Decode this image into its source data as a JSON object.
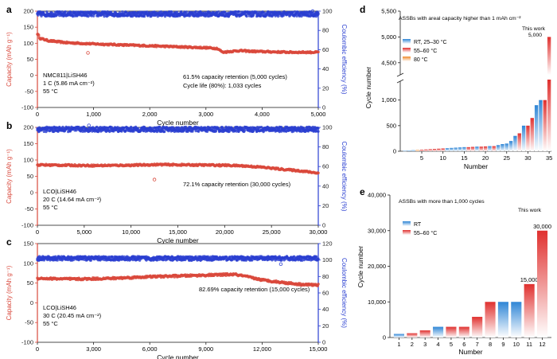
{
  "figure": {
    "colors": {
      "capacity": "#d9483b",
      "ce": "#2a3fd1",
      "axis": "#222222",
      "rt": "#2f86d6",
      "hot": "#e0312f",
      "warm": "#f08a2c"
    },
    "panels": [
      {
        "id": "a",
        "label": "a",
        "text": [
          "NMC811|LiSH46",
          "1 C (5.86 mA cm⁻²)",
          "55 °C"
        ],
        "annotation": [
          "61.5% capacity retention (5,000 cycles)",
          "Cycle life (80%): 1,033 cycles"
        ]
      },
      {
        "id": "b",
        "label": "b",
        "text": [
          "LCO|LiSH46",
          "20 C (14.64 mA cm⁻²)",
          "55 °C"
        ],
        "annotation": [
          "72.1% capacity retention (30,000 cycles)"
        ]
      },
      {
        "id": "c",
        "label": "c",
        "text": [
          "LCO|LiSH46",
          "30 C (20.45 mA cm⁻²)",
          "55 °C"
        ],
        "annotation": [
          "82.69% capacity retention (15,000 cycles)"
        ]
      },
      {
        "id": "d",
        "label": "d",
        "header": "ASSBs with areal capacity higher than 1 mAh cm⁻²",
        "this_work": "This work",
        "this_work_value": "5,000",
        "legend": [
          "RT, 25–30 °C",
          "55–60 °C",
          "80 °C"
        ]
      },
      {
        "id": "e",
        "label": "e",
        "header": "ASSBs with more than 1,000 cycles",
        "this_work": "This work",
        "legend": [
          "RT",
          "55–60 °C"
        ],
        "value_labels": [
          "15,000",
          "30,000"
        ]
      }
    ]
  },
  "chart_data": [
    {
      "type": "scatter",
      "panel": "a",
      "xlabel": "Cycle number",
      "ylabel": "Capacity (mAh g⁻¹)",
      "y2label": "Coulombic efficiency (%)",
      "xlim": [
        0,
        5000
      ],
      "ylim": [
        -100,
        200
      ],
      "y2lim": [
        0,
        100
      ],
      "xticks": [
        0,
        1000,
        2000,
        3000,
        4000,
        5000
      ],
      "xtick_labels": [
        "0",
        "1,000",
        "2,000",
        "3,000",
        "4,000",
        "5,000"
      ],
      "yticks": [
        -100,
        -50,
        0,
        50,
        100,
        150,
        200
      ],
      "y2ticks": [
        0,
        20,
        40,
        60,
        80,
        100
      ],
      "series": [
        {
          "axis": "left",
          "points": [
            [
              0,
              130
            ],
            [
              50,
              115
            ],
            [
              200,
              108
            ],
            [
              500,
              102
            ],
            [
              1000,
              98
            ],
            [
              1500,
              95
            ],
            [
              2000,
              92
            ],
            [
              2500,
              89
            ],
            [
              3000,
              86
            ],
            [
              3200,
              84
            ],
            [
              3300,
              72
            ],
            [
              3400,
              74
            ],
            [
              3600,
              77
            ],
            [
              3800,
              75
            ],
            [
              4000,
              74
            ],
            [
              4500,
              72
            ],
            [
              5000,
              72
            ]
          ]
        },
        {
          "axis": "right",
          "points": [
            [
              0,
              97
            ],
            [
              5000,
              97
            ]
          ]
        }
      ],
      "outliers": [
        [
          900,
          70
        ],
        [
          950,
          97
        ],
        [
          3400,
          95
        ],
        [
          4900,
          100
        ]
      ]
    },
    {
      "type": "scatter",
      "panel": "b",
      "xlabel": "Cycle number",
      "ylabel": "Capacity (mAh g⁻¹)",
      "y2label": "Coulombic efficiency (%)",
      "xlim": [
        0,
        30000
      ],
      "ylim": [
        -100,
        200
      ],
      "y2lim": [
        0,
        100
      ],
      "xticks": [
        0,
        5000,
        10000,
        15000,
        20000,
        25000,
        30000
      ],
      "xtick_labels": [
        "0",
        "5,000",
        "10,000",
        "15,000",
        "20,000",
        "25,000",
        "30,000"
      ],
      "yticks": [
        -150,
        -100,
        -50,
        0,
        50,
        100,
        150,
        200
      ],
      "y2ticks": [
        0,
        20,
        40,
        60,
        80,
        100
      ],
      "series": [
        {
          "axis": "left",
          "points": [
            [
              0,
              85
            ],
            [
              3000,
              84
            ],
            [
              6000,
              83
            ],
            [
              10000,
              84
            ],
            [
              13000,
              86
            ],
            [
              16000,
              85
            ],
            [
              20000,
              84
            ],
            [
              22000,
              82
            ],
            [
              24000,
              78
            ],
            [
              26000,
              72
            ],
            [
              28000,
              67
            ],
            [
              30000,
              60
            ]
          ]
        },
        {
          "axis": "right",
          "points": [
            [
              0,
              98
            ],
            [
              30000,
              98
            ]
          ]
        }
      ],
      "outliers": [
        [
          12500,
          40
        ],
        [
          19500,
          82
        ],
        [
          5500,
          102
        ]
      ]
    },
    {
      "type": "scatter",
      "panel": "c",
      "xlabel": "Cycle number",
      "ylabel": "Capacity (mAh g⁻¹)",
      "y2label": "Coulombic efficiency (%)",
      "xlim": [
        0,
        15000
      ],
      "ylim": [
        -100,
        150
      ],
      "y2lim": [
        0,
        120
      ],
      "xticks": [
        0,
        3000,
        6000,
        9000,
        12000,
        15000
      ],
      "xtick_labels": [
        "0",
        "3,000",
        "6,000",
        "9,000",
        "12,000",
        "15,000"
      ],
      "yticks": [
        -100,
        -50,
        0,
        50,
        100,
        150
      ],
      "y2ticks": [
        0,
        20,
        40,
        60,
        80,
        100,
        120
      ],
      "series": [
        {
          "axis": "left",
          "points": [
            [
              0,
              62
            ],
            [
              2000,
              60
            ],
            [
              4000,
              62
            ],
            [
              6000,
              66
            ],
            [
              9000,
              70
            ],
            [
              10500,
              72
            ],
            [
              11000,
              68
            ],
            [
              12000,
              58
            ],
            [
              13000,
              52
            ],
            [
              14000,
              47
            ],
            [
              15000,
              45
            ]
          ]
        },
        {
          "axis": "right",
          "points": [
            [
              0,
              102
            ],
            [
              15000,
              102
            ]
          ]
        }
      ],
      "outliers": [
        [
          13000,
          95
        ]
      ]
    },
    {
      "type": "bar",
      "panel": "d",
      "xlabel": "Number",
      "ylabel": "Cycle number",
      "xticks": [
        5,
        10,
        15,
        20,
        25,
        30,
        35
      ],
      "yticks_lower": [
        0,
        500,
        1000
      ],
      "yticks_upper": [
        4500,
        5000,
        5500
      ],
      "ytick_labels_lower": [
        "0",
        "500",
        "1,000"
      ],
      "ytick_labels_upper": [
        "4,500",
        "5,000",
        "5,500"
      ],
      "categories": [
        1,
        2,
        3,
        4,
        5,
        6,
        7,
        8,
        9,
        10,
        11,
        12,
        13,
        14,
        15,
        16,
        17,
        18,
        19,
        20,
        21,
        22,
        23,
        24,
        25,
        26,
        27,
        28,
        29,
        30,
        31,
        32,
        33,
        34,
        35
      ],
      "values": [
        10,
        15,
        20,
        25,
        30,
        35,
        40,
        45,
        50,
        55,
        60,
        65,
        70,
        75,
        80,
        80,
        85,
        90,
        90,
        95,
        100,
        100,
        120,
        140,
        150,
        200,
        300,
        350,
        500,
        500,
        650,
        900,
        1000,
        1000,
        5000
      ],
      "groups": [
        "rt",
        "rt",
        "rt",
        "warm",
        "hot",
        "hot",
        "hot",
        "hot",
        "hot",
        "hot",
        "rt",
        "rt",
        "rt",
        "rt",
        "rt",
        "hot",
        "hot",
        "rt",
        "hot",
        "hot",
        "rt",
        "hot",
        "rt",
        "rt",
        "rt",
        "rt",
        "rt",
        "hot",
        "rt",
        "hot",
        "hot",
        "rt",
        "rt",
        "hot",
        "hot"
      ]
    },
    {
      "type": "bar",
      "panel": "e",
      "xlabel": "Number",
      "ylabel": "Cycle number",
      "ylim": [
        0,
        40000
      ],
      "yticks": [
        0,
        10000,
        20000,
        30000,
        40000
      ],
      "ytick_labels": [
        "0",
        "10,000",
        "20,000",
        "30,000",
        "40,000"
      ],
      "categories": [
        1,
        2,
        3,
        4,
        5,
        6,
        7,
        8,
        9,
        10,
        11,
        12
      ],
      "values": [
        1000,
        1200,
        2000,
        3000,
        3000,
        3000,
        5800,
        10000,
        10000,
        10000,
        15000,
        30000
      ],
      "groups": [
        "rt",
        "hot",
        "hot",
        "rt",
        "hot",
        "hot",
        "hot",
        "hot",
        "rt",
        "rt",
        "hot",
        "hot"
      ]
    }
  ]
}
